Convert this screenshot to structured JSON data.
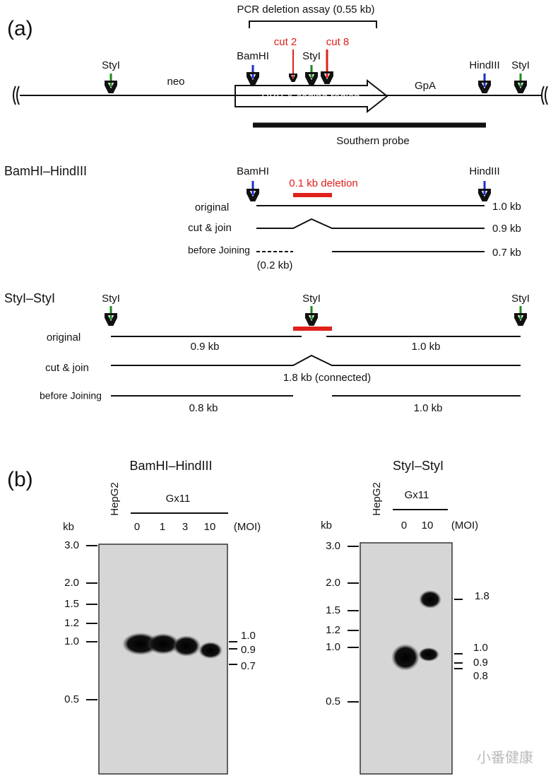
{
  "panel_a": {
    "label": "(a)",
    "map": {
      "pcr_assay": "PCR deletion assay (0.55 kb)",
      "cut_left": "cut 2",
      "cut_right": "cut 8",
      "styi_left": "StyI",
      "styi_mid": "StyI",
      "styi_right": "StyI",
      "bamhi": "BamHI",
      "hindiii": "HindIII",
      "neo": "neo",
      "gpa": "GpA",
      "coding_region": "HBV X coding region",
      "probe": "Southern probe"
    },
    "bamhi_hindiii": {
      "title": "BamHI–HindIII",
      "bamhi": "BamHI",
      "hindiii": "HindIII",
      "deletion": "0.1 kb deletion",
      "rows": [
        {
          "label": "original",
          "sizes": [
            "1.0 kb"
          ]
        },
        {
          "label": "cut & join",
          "sizes": [
            "0.9 kb"
          ]
        },
        {
          "label": "before Joining",
          "sizes": [
            "(0.2 kb)",
            "0.7 kb"
          ]
        }
      ]
    },
    "styi_styi": {
      "title": "StyI–StyI",
      "sites": [
        "StyI",
        "StyI",
        "StyI"
      ],
      "rows": [
        {
          "label": "original",
          "sizes": [
            "0.9 kb",
            "1.0 kb"
          ]
        },
        {
          "label": "cut & join",
          "sizes": [
            "1.8 kb (connected)"
          ]
        },
        {
          "label": "before Joining",
          "sizes": [
            "0.8 kb",
            "1.0 kb"
          ]
        }
      ]
    }
  },
  "panel_b": {
    "label": "(b)",
    "blots": [
      {
        "title": "BamHI–HindIII",
        "control": "HepG2",
        "group": "Gx11",
        "lanes": [
          "0",
          "1",
          "3",
          "10"
        ],
        "lane_unit": "(MOI)",
        "ladder_unit": "kb",
        "ladder": [
          "3.0",
          "2.0",
          "1.5",
          "1.2",
          "1.0",
          "0.5"
        ],
        "markers": [
          "1.0",
          "0.9",
          "0.7"
        ]
      },
      {
        "title": "StyI–StyI",
        "control": "HepG2",
        "group": "Gx11",
        "lanes": [
          "0",
          "10"
        ],
        "lane_unit": "(MOI)",
        "ladder_unit": "kb",
        "ladder": [
          "3.0",
          "2.0",
          "1.5",
          "1.2",
          "1.0",
          "0.5"
        ],
        "markers": [
          "1.8",
          "1.0",
          "0.9",
          "0.8"
        ]
      }
    ]
  },
  "watermark": "小番健康"
}
